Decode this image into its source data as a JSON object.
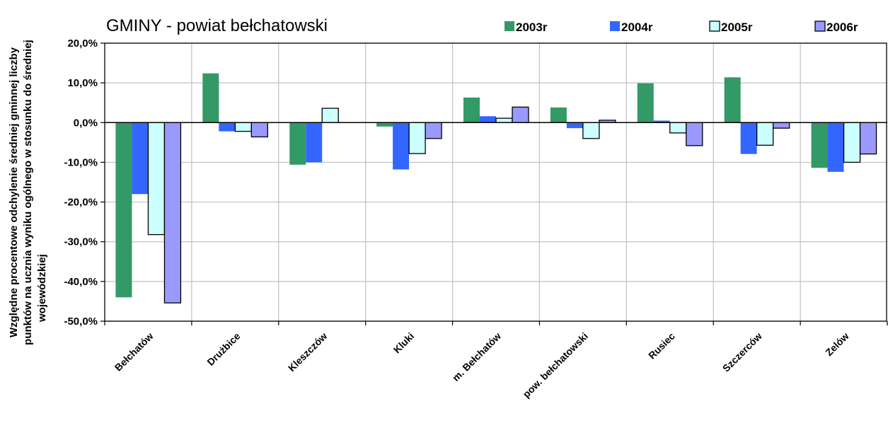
{
  "chart_data": {
    "type": "bar",
    "title": "GMINY -   powiat bełchatowski",
    "ylabel_lines": [
      "Względne procentowe odchylenie średniej gminnej liczby",
      "punktów na ucznia wyniku ogólnego w stosunku do średniej",
      "wojewódzkiej"
    ],
    "xlabel": "",
    "ylim": [
      -50,
      20
    ],
    "yticks": [
      20,
      10,
      0,
      -10,
      -20,
      -30,
      -40,
      -50
    ],
    "ytick_labels": [
      "20,0%",
      "10,0%",
      "0,0%",
      "-10,0%",
      "-20,0%",
      "-30,0%",
      "-40,0%",
      "-50,0%"
    ],
    "grid": true,
    "legend_position": "top",
    "categories": [
      "Bełchatów",
      "Drużbice",
      "Kleszczów",
      "Kluki",
      "m. Bełchatów",
      "pow. bełchatowski",
      "Rusiec",
      "Szczerców",
      "Zelów"
    ],
    "series": [
      {
        "name": "2003r",
        "color": "#339966",
        "border": "none",
        "values": [
          -44.0,
          12.4,
          -10.6,
          -1.0,
          6.3,
          3.8,
          9.9,
          11.4,
          -11.4
        ]
      },
      {
        "name": "2004r",
        "color": "#3366ff",
        "border": "none",
        "values": [
          -18.0,
          -2.2,
          -10.0,
          -11.8,
          1.6,
          -1.4,
          0.5,
          -7.9,
          -12.4
        ]
      },
      {
        "name": "2005r",
        "color": "#ccffff",
        "border": "#000000",
        "values": [
          -28.2,
          -2.2,
          3.6,
          -7.8,
          1.1,
          -4.0,
          -2.6,
          -5.7,
          -10.0
        ]
      },
      {
        "name": "2006r",
        "color": "#9999ff",
        "border": "#000000",
        "values": [
          -45.4,
          -3.6,
          0,
          -4.0,
          3.9,
          0.6,
          -5.8,
          -1.4,
          -7.9
        ]
      }
    ]
  }
}
